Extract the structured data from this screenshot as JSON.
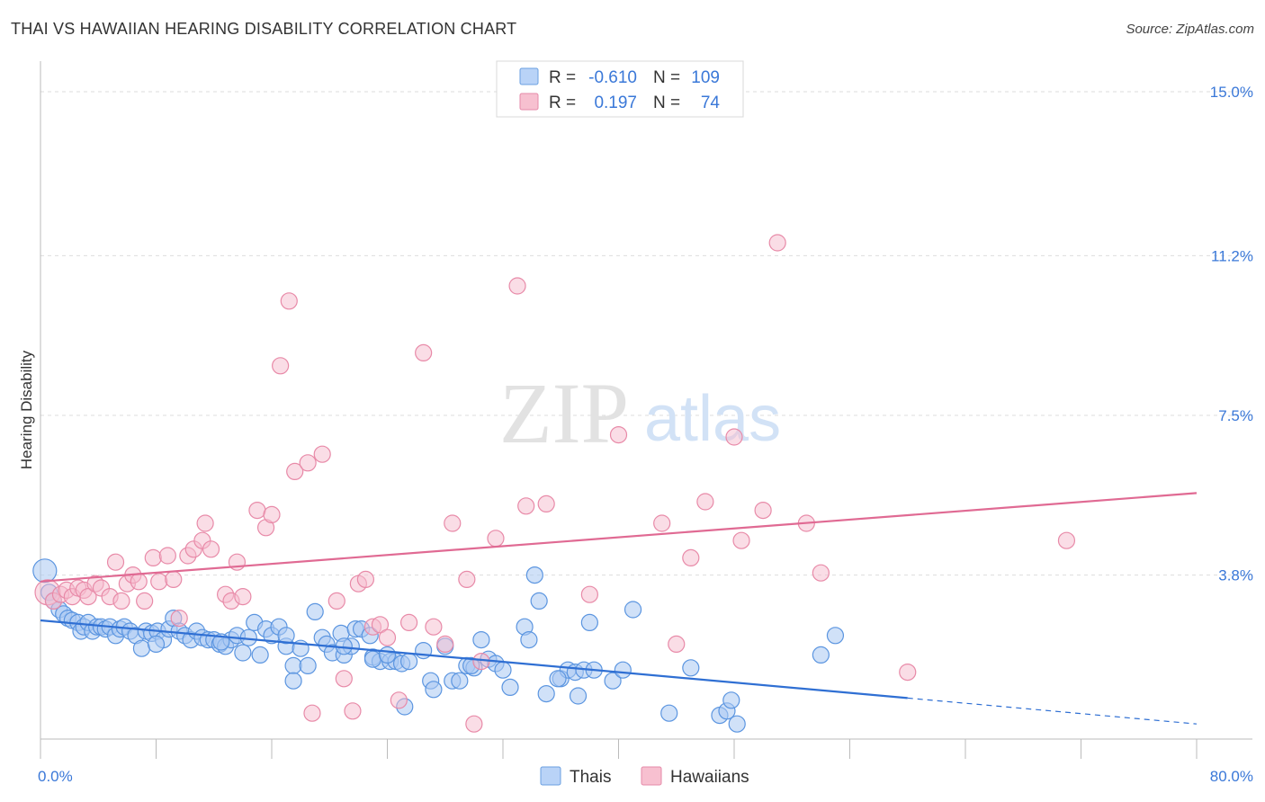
{
  "title": "THAI VS HAWAIIAN HEARING DISABILITY CORRELATION CHART",
  "source": "Source: ZipAtlas.com",
  "watermark": {
    "zip": "ZIP",
    "atlas": "atlas"
  },
  "legend": {
    "rows": [
      {
        "r_label": "R =",
        "r_value": "-0.610",
        "n_label": "N =",
        "n_value": "109",
        "fill": "#b9d3f7",
        "stroke": "#6a9fe0"
      },
      {
        "r_label": "R =",
        "r_value": "0.197",
        "n_label": "N =",
        "n_value": "74",
        "fill": "#f7c0d0",
        "stroke": "#e58aa8"
      }
    ]
  },
  "colors": {
    "thai": "#5b95e0",
    "thai_fill": "#a9c8f2",
    "hawaiian": "#e88aa8",
    "hawaiian_fill": "#f5bccd",
    "thai_line": "#2f6fd3",
    "hawaiian_line": "#e06a93",
    "grid": "#dddddd",
    "tick_text": "#3a78d8"
  },
  "chart_data": {
    "type": "scatter",
    "title": "THAI VS HAWAIIAN HEARING DISABILITY CORRELATION CHART",
    "xlabel": "",
    "ylabel": "Hearing Disability",
    "xlim": [
      0,
      80
    ],
    "ylim": [
      0,
      15.5
    ],
    "x_tick_labels": [
      "0.0%",
      "80.0%"
    ],
    "y_ticks": [
      3.8,
      7.5,
      11.2,
      15.0
    ],
    "y_tick_labels": [
      "3.8%",
      "7.5%",
      "11.2%",
      "15.0%"
    ],
    "grid": true,
    "legend_position": "bottom-center",
    "series": [
      {
        "name": "Thais",
        "trend": {
          "x0": 0,
          "y0": 2.75,
          "x1": 60,
          "y1": 0.95,
          "dash_to_x": 80,
          "dash_to_y": 0.35
        },
        "points": [
          [
            0.3,
            3.9
          ],
          [
            0.6,
            3.4
          ],
          [
            0.9,
            3.2
          ],
          [
            1.3,
            3.0
          ],
          [
            1.6,
            2.9
          ],
          [
            1.9,
            2.8
          ],
          [
            2.2,
            2.75
          ],
          [
            2.6,
            2.7
          ],
          [
            2.8,
            2.5
          ],
          [
            3.0,
            2.6
          ],
          [
            3.3,
            2.7
          ],
          [
            3.6,
            2.5
          ],
          [
            3.9,
            2.6
          ],
          [
            4.2,
            2.6
          ],
          [
            4.5,
            2.55
          ],
          [
            4.8,
            2.6
          ],
          [
            5.2,
            2.4
          ],
          [
            5.5,
            2.55
          ],
          [
            5.8,
            2.6
          ],
          [
            6.2,
            2.5
          ],
          [
            6.6,
            2.4
          ],
          [
            7.0,
            2.1
          ],
          [
            7.3,
            2.5
          ],
          [
            7.7,
            2.45
          ],
          [
            8.1,
            2.5
          ],
          [
            8.5,
            2.3
          ],
          [
            8.9,
            2.55
          ],
          [
            9.2,
            2.8
          ],
          [
            9.6,
            2.5
          ],
          [
            10.0,
            2.4
          ],
          [
            10.4,
            2.3
          ],
          [
            10.8,
            2.5
          ],
          [
            11.2,
            2.35
          ],
          [
            11.6,
            2.3
          ],
          [
            12.0,
            2.3
          ],
          [
            12.4,
            2.2
          ],
          [
            12.8,
            2.15
          ],
          [
            13.2,
            2.3
          ],
          [
            13.6,
            2.4
          ],
          [
            14.0,
            2.0
          ],
          [
            14.4,
            2.35
          ],
          [
            14.8,
            2.7
          ],
          [
            15.2,
            1.95
          ],
          [
            15.6,
            2.55
          ],
          [
            16.0,
            2.4
          ],
          [
            16.5,
            2.6
          ],
          [
            17.0,
            2.15
          ],
          [
            17.5,
            1.7
          ],
          [
            17.5,
            1.35
          ],
          [
            18.0,
            2.1
          ],
          [
            18.5,
            1.7
          ],
          [
            19.0,
            2.95
          ],
          [
            19.5,
            2.35
          ],
          [
            19.8,
            2.2
          ],
          [
            20.2,
            2.0
          ],
          [
            20.8,
            2.45
          ],
          [
            21.0,
            1.95
          ],
          [
            21.5,
            2.15
          ],
          [
            21.8,
            2.55
          ],
          [
            22.2,
            2.55
          ],
          [
            22.8,
            2.4
          ],
          [
            23.0,
            1.9
          ],
          [
            23.5,
            1.8
          ],
          [
            24.2,
            1.8
          ],
          [
            24.6,
            1.8
          ],
          [
            25.0,
            1.75
          ],
          [
            25.2,
            0.75
          ],
          [
            25.5,
            1.8
          ],
          [
            26.5,
            2.05
          ],
          [
            27.0,
            1.35
          ],
          [
            27.2,
            1.15
          ],
          [
            28.0,
            2.15
          ],
          [
            28.5,
            1.35
          ],
          [
            29.0,
            1.35
          ],
          [
            29.5,
            1.7
          ],
          [
            30.5,
            2.3
          ],
          [
            30.0,
            1.65
          ],
          [
            31.0,
            1.85
          ],
          [
            31.5,
            1.75
          ],
          [
            32.0,
            1.6
          ],
          [
            32.5,
            1.2
          ],
          [
            33.5,
            2.6
          ],
          [
            33.8,
            2.3
          ],
          [
            34.2,
            3.8
          ],
          [
            34.5,
            3.2
          ],
          [
            35.0,
            1.05
          ],
          [
            36.0,
            1.4
          ],
          [
            36.5,
            1.6
          ],
          [
            37.0,
            1.55
          ],
          [
            37.2,
            1.0
          ],
          [
            37.6,
            1.6
          ],
          [
            38.0,
            2.7
          ],
          [
            38.3,
            1.6
          ],
          [
            39.6,
            1.35
          ],
          [
            40.3,
            1.6
          ],
          [
            41.0,
            3.0
          ],
          [
            43.5,
            0.6
          ],
          [
            45.0,
            1.65
          ],
          [
            47.0,
            0.55
          ],
          [
            47.5,
            0.65
          ],
          [
            47.8,
            0.9
          ],
          [
            48.2,
            0.35
          ],
          [
            54.0,
            1.95
          ],
          [
            55.0,
            2.4
          ],
          [
            17.0,
            2.4
          ],
          [
            23.0,
            1.85
          ],
          [
            29.8,
            1.7
          ],
          [
            35.8,
            1.4
          ],
          [
            8.0,
            2.2
          ],
          [
            12.5,
            2.25
          ],
          [
            21.0,
            2.15
          ],
          [
            24.0,
            1.95
          ]
        ]
      },
      {
        "name": "Hawaiians",
        "trend": {
          "x0": 0,
          "y0": 3.65,
          "x1": 80,
          "y1": 5.7
        },
        "points": [
          [
            0.5,
            3.4
          ],
          [
            0.9,
            3.2
          ],
          [
            1.4,
            3.35
          ],
          [
            1.8,
            3.45
          ],
          [
            2.2,
            3.3
          ],
          [
            2.6,
            3.5
          ],
          [
            3.0,
            3.45
          ],
          [
            3.3,
            3.3
          ],
          [
            3.8,
            3.6
          ],
          [
            4.2,
            3.5
          ],
          [
            4.8,
            3.3
          ],
          [
            5.2,
            4.1
          ],
          [
            5.6,
            3.2
          ],
          [
            6.0,
            3.6
          ],
          [
            6.4,
            3.8
          ],
          [
            6.8,
            3.65
          ],
          [
            7.2,
            3.2
          ],
          [
            7.8,
            4.2
          ],
          [
            8.2,
            3.65
          ],
          [
            8.8,
            4.25
          ],
          [
            9.2,
            3.7
          ],
          [
            9.6,
            2.8
          ],
          [
            10.2,
            4.25
          ],
          [
            10.6,
            4.4
          ],
          [
            11.2,
            4.6
          ],
          [
            11.4,
            5.0
          ],
          [
            11.8,
            4.4
          ],
          [
            12.8,
            3.35
          ],
          [
            13.2,
            3.2
          ],
          [
            13.6,
            4.1
          ],
          [
            14.0,
            3.3
          ],
          [
            15.0,
            5.3
          ],
          [
            15.6,
            4.9
          ],
          [
            16.0,
            5.2
          ],
          [
            16.6,
            8.65
          ],
          [
            17.2,
            10.15
          ],
          [
            17.6,
            6.2
          ],
          [
            18.5,
            6.4
          ],
          [
            18.8,
            0.6
          ],
          [
            19.5,
            6.6
          ],
          [
            20.5,
            3.2
          ],
          [
            21.0,
            1.4
          ],
          [
            21.6,
            0.65
          ],
          [
            22.0,
            3.6
          ],
          [
            22.5,
            3.7
          ],
          [
            23.0,
            2.6
          ],
          [
            23.5,
            2.65
          ],
          [
            24.0,
            2.35
          ],
          [
            24.8,
            0.9
          ],
          [
            25.5,
            2.7
          ],
          [
            26.5,
            8.95
          ],
          [
            27.2,
            2.6
          ],
          [
            28.0,
            2.2
          ],
          [
            28.5,
            5.0
          ],
          [
            29.5,
            3.7
          ],
          [
            30.0,
            0.35
          ],
          [
            30.5,
            1.8
          ],
          [
            31.5,
            4.65
          ],
          [
            33.0,
            10.5
          ],
          [
            33.6,
            5.4
          ],
          [
            35.0,
            5.45
          ],
          [
            38.0,
            3.35
          ],
          [
            40.0,
            7.05
          ],
          [
            43.0,
            5.0
          ],
          [
            44.0,
            2.2
          ],
          [
            45.0,
            4.2
          ],
          [
            46.0,
            5.5
          ],
          [
            48.0,
            7.0
          ],
          [
            48.5,
            4.6
          ],
          [
            50.0,
            5.3
          ],
          [
            51.0,
            11.5
          ],
          [
            53.0,
            5.0
          ],
          [
            54.0,
            3.85
          ],
          [
            60.0,
            1.55
          ],
          [
            71.0,
            4.6
          ]
        ]
      }
    ]
  },
  "bottom_legend": [
    {
      "label": "Thais"
    },
    {
      "label": "Hawaiians"
    }
  ]
}
